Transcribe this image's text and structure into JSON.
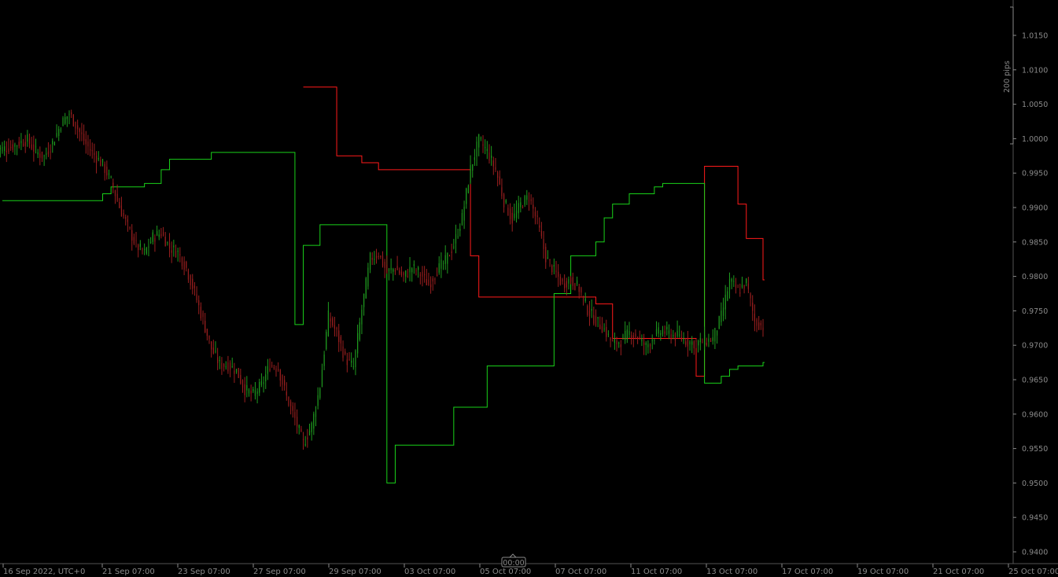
{
  "chart_data": {
    "type": "candlestick",
    "y_ticks": [
      "1.0150",
      "1.0100",
      "1.0050",
      "1.0000",
      "0.9950",
      "0.9900",
      "0.9850",
      "0.9800",
      "0.9750",
      "0.9700",
      "0.9650",
      "0.9600",
      "0.9550",
      "0.9500",
      "0.9450",
      "0.9400"
    ],
    "ylim": [
      0.9378,
      1.0195
    ],
    "x_ticks": [
      "16 Sep 2022, UTC+0",
      "21 Sep 07:00",
      "23 Sep 07:00",
      "27 Sep 07:00",
      "29 Sep 07:00",
      "03 Oct 07:00",
      "05 Oct 07:00",
      "07 Oct 07:00",
      "11 Oct 07:00",
      "13 Oct 07:00",
      "17 Oct 07:00",
      "19 Oct 07:00",
      "21 Oct 07:00",
      "25 Oct 07:00"
    ],
    "scale_label": "200 pips",
    "cursor_time": "00:00",
    "colors": {
      "background": "#000000",
      "axis": "#8a8a8a",
      "bull": "#1f9a1f",
      "bear": "#9a1f1f",
      "upper_band": "#ff1a1a",
      "lower_band": "#19d119"
    },
    "series": [
      {
        "role": "price",
        "close": [
          0.9985,
          0.9988,
          0.9994,
          0.9998,
          0.9981,
          0.9974,
          0.9994,
          1.0021,
          1.0037,
          1.0015,
          0.9992,
          0.9976,
          0.9962,
          0.9938,
          0.9901,
          0.9872,
          0.9845,
          0.9834,
          0.9857,
          0.9863,
          0.9842,
          0.9835,
          0.9812,
          0.9776,
          0.9736,
          0.9695,
          0.9672,
          0.9671,
          0.9663,
          0.9636,
          0.9628,
          0.9642,
          0.9671,
          0.9667,
          0.9625,
          0.9593,
          0.9557,
          0.9583,
          0.9641,
          0.9742,
          0.9718,
          0.9681,
          0.9668,
          0.9752,
          0.9826,
          0.9833,
          0.9806,
          0.9812,
          0.9799,
          0.9813,
          0.9804,
          0.9788,
          0.9809,
          0.9822,
          0.9846,
          0.9885,
          0.9956,
          0.9998,
          0.9981,
          0.9955,
          0.9909,
          0.9882,
          0.9904,
          0.9916,
          0.9878,
          0.9828,
          0.9808,
          0.9789,
          0.9796,
          0.9782,
          0.9752,
          0.9736,
          0.9723,
          0.9702,
          0.9706,
          0.9718,
          0.9712,
          0.9698,
          0.9714,
          0.9721,
          0.9715,
          0.9712,
          0.9705,
          0.9703,
          0.9706,
          0.9709,
          0.9742,
          0.9793,
          0.9779,
          0.9791,
          0.9735,
          0.9727
        ]
      },
      {
        "role": "upper_band",
        "x": [
          36,
          40,
          43,
          45,
          56,
          57,
          71,
          73,
          83,
          84,
          88,
          89,
          91
        ],
        "y": [
          1.0075,
          0.9975,
          0.9965,
          0.9955,
          0.983,
          0.977,
          0.976,
          0.971,
          0.9655,
          0.996,
          0.9905,
          0.9855,
          0.9795
        ]
      },
      {
        "role": "lower_band",
        "x": [
          0,
          11,
          12,
          13,
          17,
          19,
          20,
          24,
          25,
          35,
          36,
          38,
          46,
          47,
          48,
          54,
          58,
          66,
          68,
          71,
          72,
          73,
          75,
          78,
          79,
          84,
          86,
          87,
          88,
          91
        ],
        "y": [
          0.991,
          0.991,
          0.992,
          0.993,
          0.9935,
          0.9955,
          0.997,
          0.997,
          0.998,
          0.973,
          0.9845,
          0.9875,
          0.95,
          0.9555,
          0.9555,
          0.961,
          0.967,
          0.9775,
          0.983,
          0.985,
          0.9885,
          0.9905,
          0.992,
          0.993,
          0.9935,
          0.9645,
          0.9655,
          0.9665,
          0.967,
          0.9675
        ]
      }
    ]
  }
}
